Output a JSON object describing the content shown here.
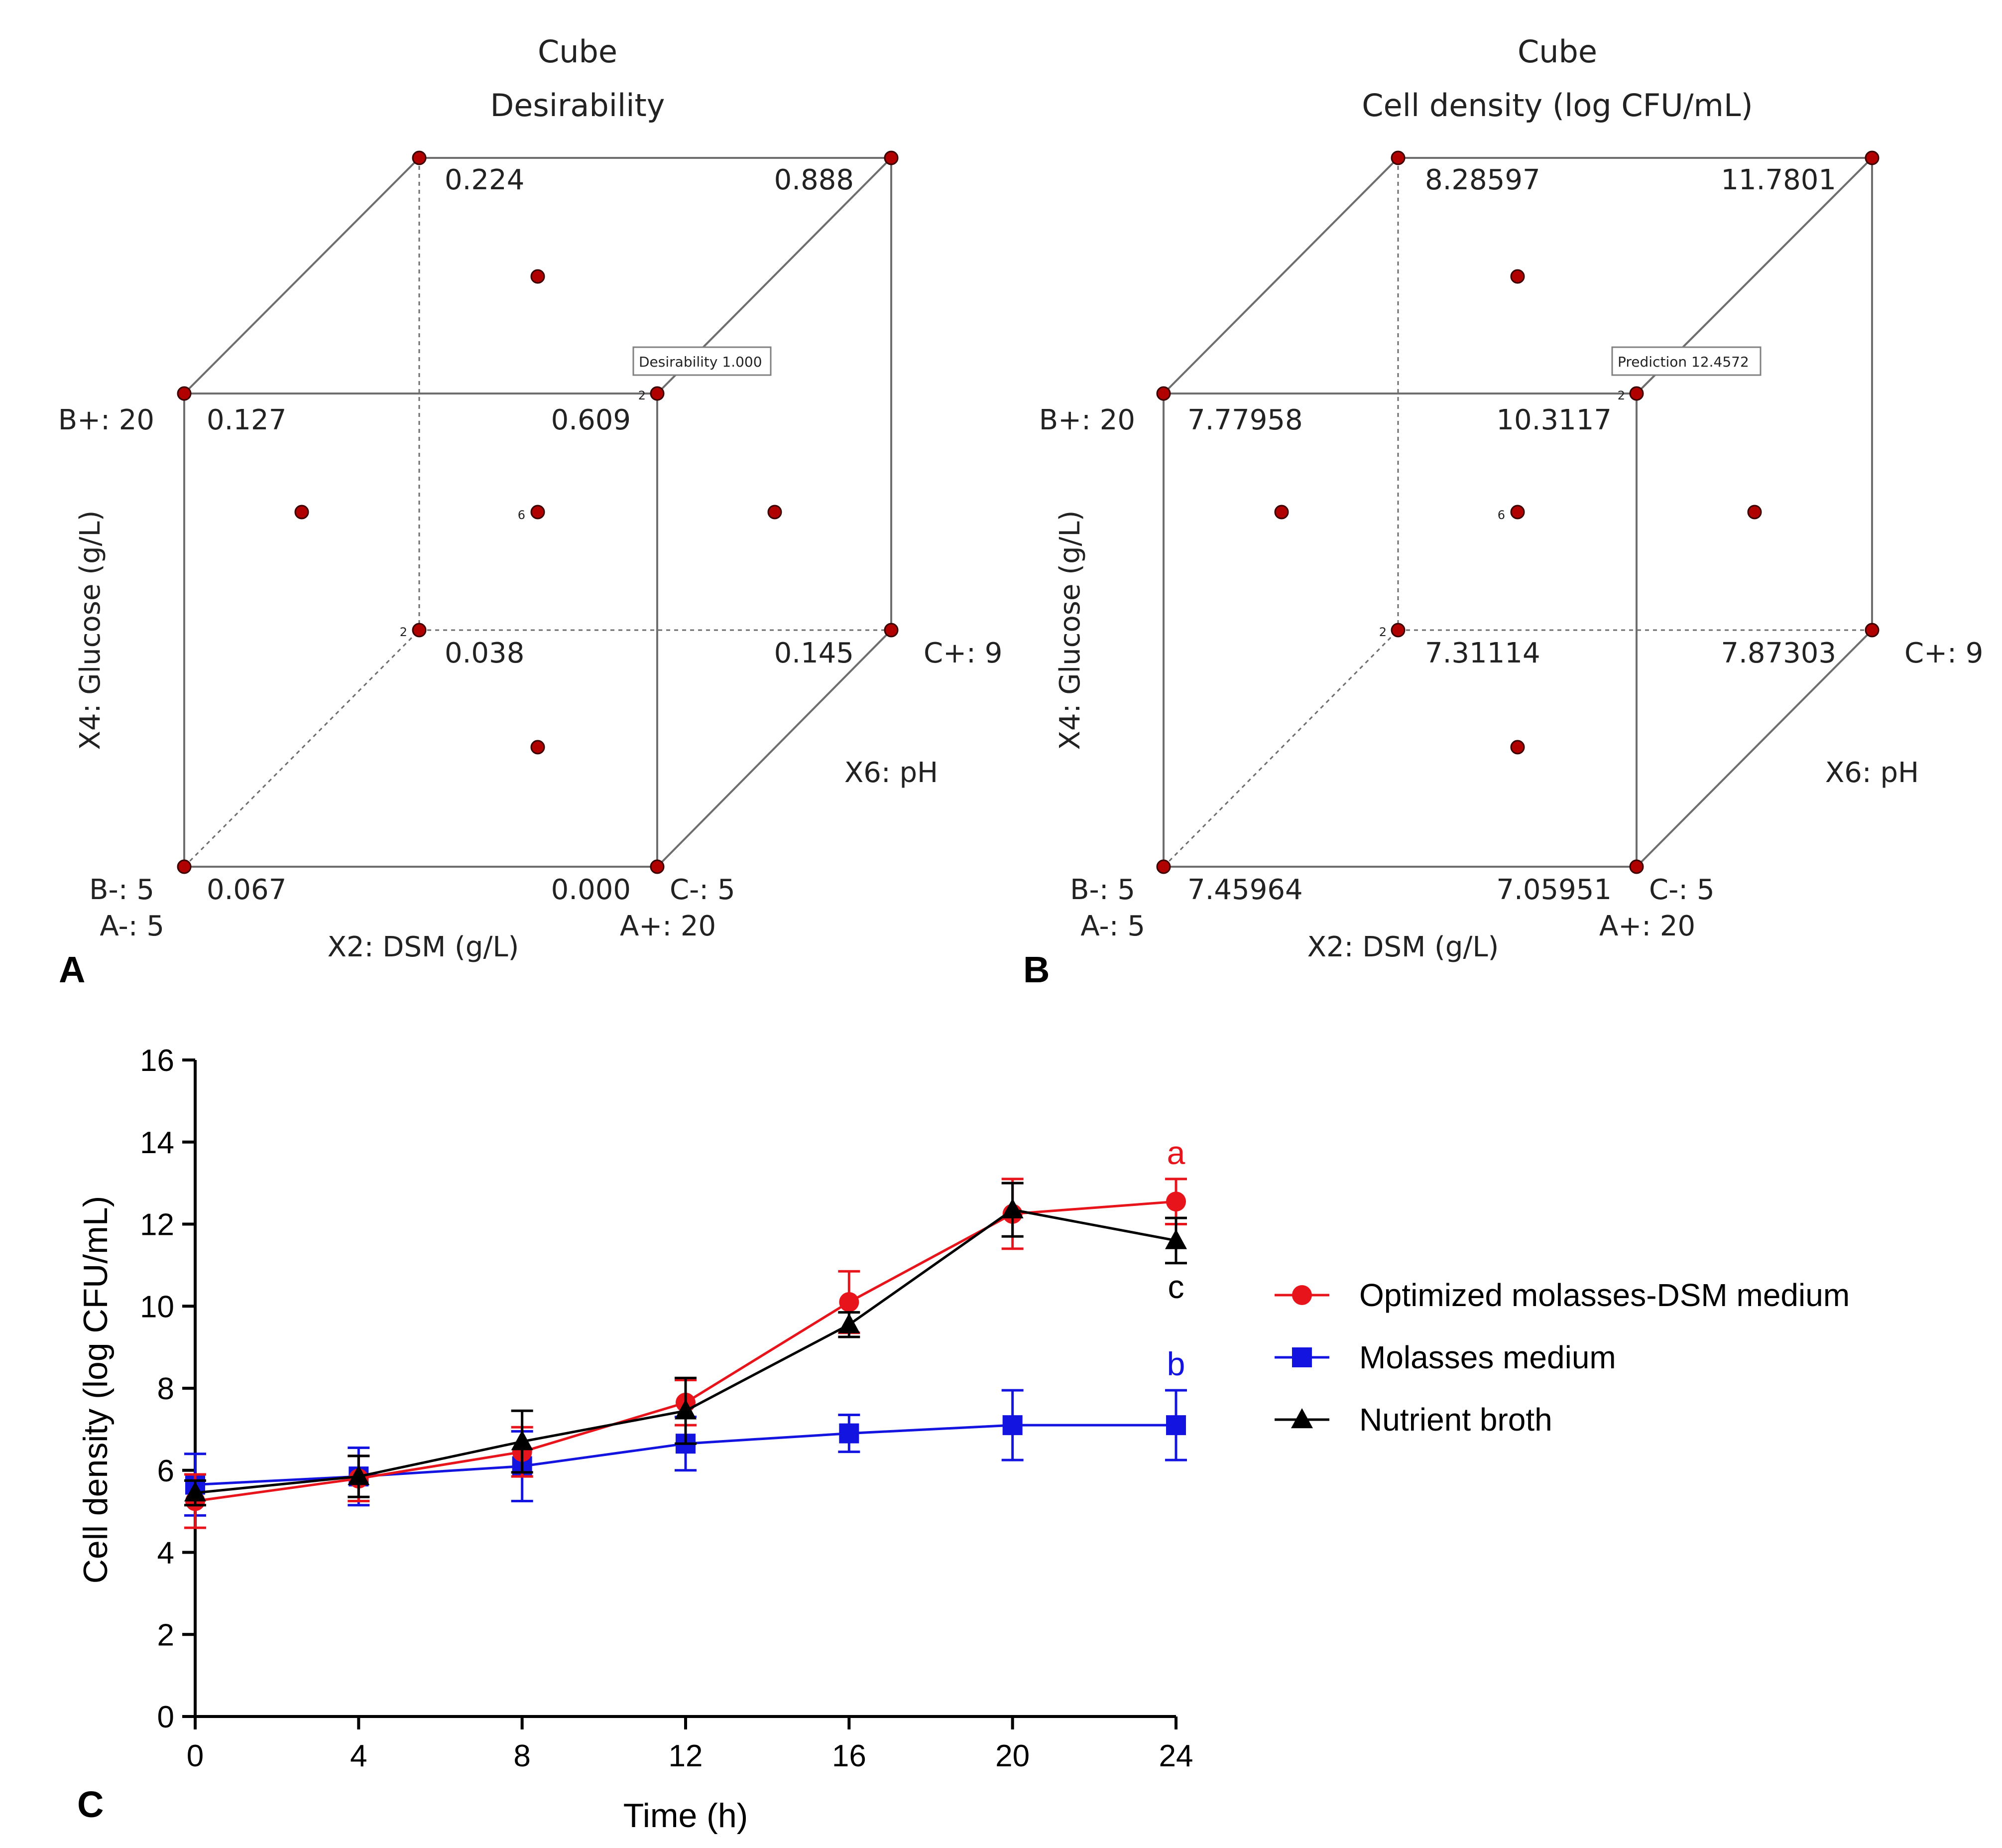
{
  "panels": {
    "A": {
      "letter": "A",
      "title": "Cube",
      "subtitle": "Desirability",
      "axis_vertical": "X4: Glucose (g/L)",
      "axis_horizontal": "X2: DSM (g/L)",
      "axis_depth": "X6: pH",
      "labels": {
        "b_plus": "B+: 20",
        "b_minus": "B-: 5",
        "a_minus": "A-: 5",
        "a_plus": "A+: 20",
        "c_minus": "C-: 5",
        "c_plus": "C+: 9"
      },
      "corner_values": {
        "back_top_left": "0.224",
        "back_top_right": "0.888",
        "front_top_left": "0.127",
        "front_top_right": "0.609",
        "back_bottom_left": "0.038",
        "back_bottom_right": "0.145",
        "front_bottom_left": "0.067",
        "front_bottom_right": "0.000"
      },
      "tooltip": "Desirability  1.000",
      "run_count_center": "6",
      "run_count_corner": "2"
    },
    "B": {
      "letter": "B",
      "title": "Cube",
      "subtitle": "Cell density (log CFU/mL)",
      "axis_vertical": "X4: Glucose (g/L)",
      "axis_horizontal": "X2: DSM (g/L)",
      "axis_depth": "X6: pH",
      "labels": {
        "b_plus": "B+: 20",
        "b_minus": "B-: 5",
        "a_minus": "A-: 5",
        "a_plus": "A+: 20",
        "c_minus": "C-: 5",
        "c_plus": "C+: 9"
      },
      "corner_values": {
        "back_top_left": "8.28597",
        "back_top_right": "11.7801",
        "front_top_left": "7.77958",
        "front_top_right": "10.3117",
        "back_bottom_left": "7.31114",
        "back_bottom_right": "7.87303",
        "front_bottom_left": "7.45964",
        "front_bottom_right": "7.05951"
      },
      "tooltip": "Prediction  12.4572",
      "run_count_center": "6",
      "run_count_corner": "2"
    }
  },
  "chart_data": {
    "type": "line",
    "panel_letter": "C",
    "xlabel": "Time (h)",
    "ylabel": "Cell density (log CFU/mL)",
    "x": [
      0,
      4,
      8,
      12,
      16,
      20,
      24
    ],
    "xlim": [
      0,
      24
    ],
    "ylim": [
      0,
      16
    ],
    "xticks": [
      0,
      4,
      8,
      12,
      16,
      20,
      24
    ],
    "yticks": [
      0,
      2,
      4,
      6,
      8,
      10,
      12,
      14,
      16
    ],
    "series": [
      {
        "name": "Optimized molasses-DSM medium",
        "color": "#e8141b",
        "marker": "circle",
        "values": [
          5.25,
          5.8,
          6.45,
          7.65,
          10.1,
          12.25,
          12.55
        ],
        "errors": [
          0.65,
          0.55,
          0.6,
          0.55,
          0.75,
          0.85,
          0.55
        ],
        "annotation": "a"
      },
      {
        "name": "Molasses medium",
        "color": "#1414e0",
        "marker": "square",
        "values": [
          5.65,
          5.85,
          6.1,
          6.65,
          6.9,
          7.1,
          7.1
        ],
        "errors": [
          0.75,
          0.7,
          0.85,
          0.65,
          0.45,
          0.85,
          0.85
        ],
        "annotation": "b"
      },
      {
        "name": "Nutrient broth",
        "color": "#000000",
        "marker": "triangle",
        "values": [
          5.45,
          5.85,
          6.7,
          7.45,
          9.55,
          12.35,
          11.6
        ],
        "errors": [
          0.3,
          0.5,
          0.75,
          0.8,
          0.3,
          0.65,
          0.55
        ],
        "annotation": "c"
      }
    ],
    "legend": [
      "Optimized molasses-DSM medium",
      "Molasses medium",
      "Nutrient broth"
    ],
    "legend_position": "right"
  }
}
